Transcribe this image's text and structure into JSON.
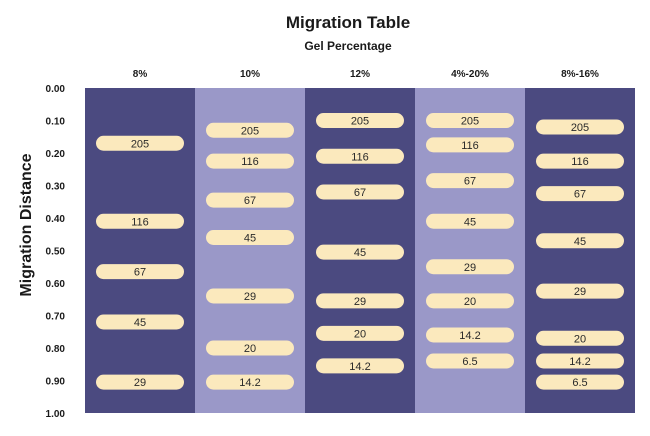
{
  "chart_data": {
    "type": "table",
    "title": "Migration Table",
    "subtitle": "Gel Percentage",
    "ylabel": "Migration Distance",
    "ylim": [
      0,
      1
    ],
    "yticks": [
      "0.00",
      "0.10",
      "0.20",
      "0.30",
      "0.40",
      "0.50",
      "0.60",
      "0.70",
      "0.80",
      "0.90",
      "1.00"
    ],
    "lanes": [
      {
        "label": "8%",
        "bands": [
          {
            "text": "205",
            "y": 0.17
          },
          {
            "text": "116",
            "y": 0.41
          },
          {
            "text": "67",
            "y": 0.565
          },
          {
            "text": "45",
            "y": 0.72
          },
          {
            "text": "29",
            "y": 0.905
          }
        ]
      },
      {
        "label": "10%",
        "bands": [
          {
            "text": "205",
            "y": 0.13
          },
          {
            "text": "116",
            "y": 0.225
          },
          {
            "text": "67",
            "y": 0.345
          },
          {
            "text": "45",
            "y": 0.46
          },
          {
            "text": "29",
            "y": 0.64
          },
          {
            "text": "20",
            "y": 0.8
          },
          {
            "text": "14.2",
            "y": 0.905
          }
        ]
      },
      {
        "label": "12%",
        "bands": [
          {
            "text": "205",
            "y": 0.1
          },
          {
            "text": "116",
            "y": 0.21
          },
          {
            "text": "67",
            "y": 0.32
          },
          {
            "text": "45",
            "y": 0.505
          },
          {
            "text": "29",
            "y": 0.655
          },
          {
            "text": "20",
            "y": 0.755
          },
          {
            "text": "14.2",
            "y": 0.855
          }
        ]
      },
      {
        "label": "4%-20%",
        "bands": [
          {
            "text": "205",
            "y": 0.1
          },
          {
            "text": "116",
            "y": 0.175
          },
          {
            "text": "67",
            "y": 0.285
          },
          {
            "text": "45",
            "y": 0.41
          },
          {
            "text": "29",
            "y": 0.55
          },
          {
            "text": "20",
            "y": 0.655
          },
          {
            "text": "14.2",
            "y": 0.76
          },
          {
            "text": "6.5",
            "y": 0.84
          }
        ]
      },
      {
        "label": "8%-16%",
        "bands": [
          {
            "text": "205",
            "y": 0.12
          },
          {
            "text": "116",
            "y": 0.225
          },
          {
            "text": "67",
            "y": 0.325
          },
          {
            "text": "45",
            "y": 0.47
          },
          {
            "text": "29",
            "y": 0.625
          },
          {
            "text": "20",
            "y": 0.77
          },
          {
            "text": "14.2",
            "y": 0.84
          },
          {
            "text": "6.5",
            "y": 0.905
          }
        ]
      }
    ],
    "colors": {
      "lane_dark": "#4b4a80",
      "lane_light": "#9a98c8",
      "band_fill": "#fbe9bd",
      "text": "#1a1a1a"
    }
  }
}
